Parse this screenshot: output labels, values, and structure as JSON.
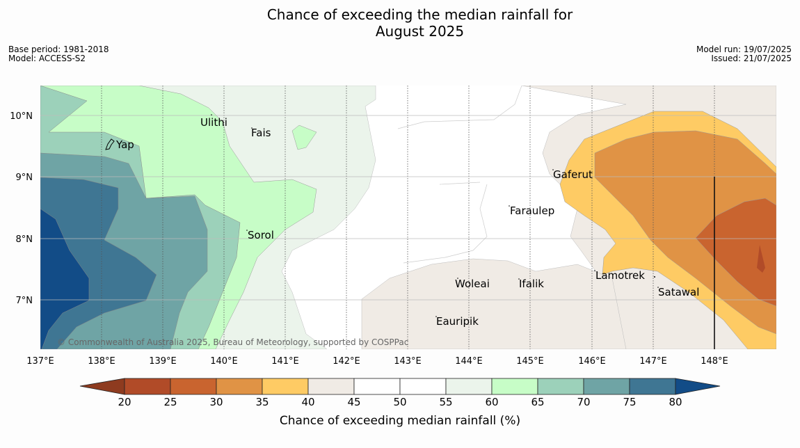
{
  "title_line1": "Chance of exceeding the median rainfall for",
  "title_line2": "August 2025",
  "meta_left": [
    "Base period: 1981-2018",
    "Model: ACCESS-S2"
  ],
  "meta_right": [
    "Model run: 19/07/2025",
    "Issued: 21/07/2025"
  ],
  "credit": "© Commonwealth of Australia 2025, Bureau of Meteorology, supported by COSPPac",
  "lon_labels": [
    "137°E",
    "138°E",
    "139°E",
    "140°E",
    "141°E",
    "142°E",
    "143°E",
    "144°E",
    "145°E",
    "146°E",
    "147°E",
    "148°E"
  ],
  "lat_labels": [
    "10°N",
    "9°N",
    "8°N",
    "7°N"
  ],
  "places": [
    "Ulithi",
    "Fais",
    "Yap",
    "Gaferut",
    "Faraulep",
    "Sorol",
    "Woleai",
    "Ifalik",
    "Lamotrek",
    "Satawal",
    "Eauripik"
  ],
  "colorbar": {
    "title": "Chance of exceeding median rainfall (%)",
    "ticks": [
      "20",
      "25",
      "30",
      "35",
      "40",
      "45",
      "50",
      "55",
      "60",
      "65",
      "70",
      "75",
      "80"
    ],
    "colors": {
      "lt20": "#8e3b1f",
      "20-25": "#b14b28",
      "25-30": "#c9642f",
      "30-35": "#e09345",
      "35-40": "#fecb64",
      "40-45": "#f0ebe5",
      "45-50": "#ffffff",
      "50-55": "#ffffff",
      "55-60": "#ebf4eb",
      "60-65": "#c7fdc7",
      "65-70": "#9cd1ba",
      "70-75": "#6fa4a5",
      "75-80": "#3f7693",
      "gt80": "#124c87"
    }
  }
}
